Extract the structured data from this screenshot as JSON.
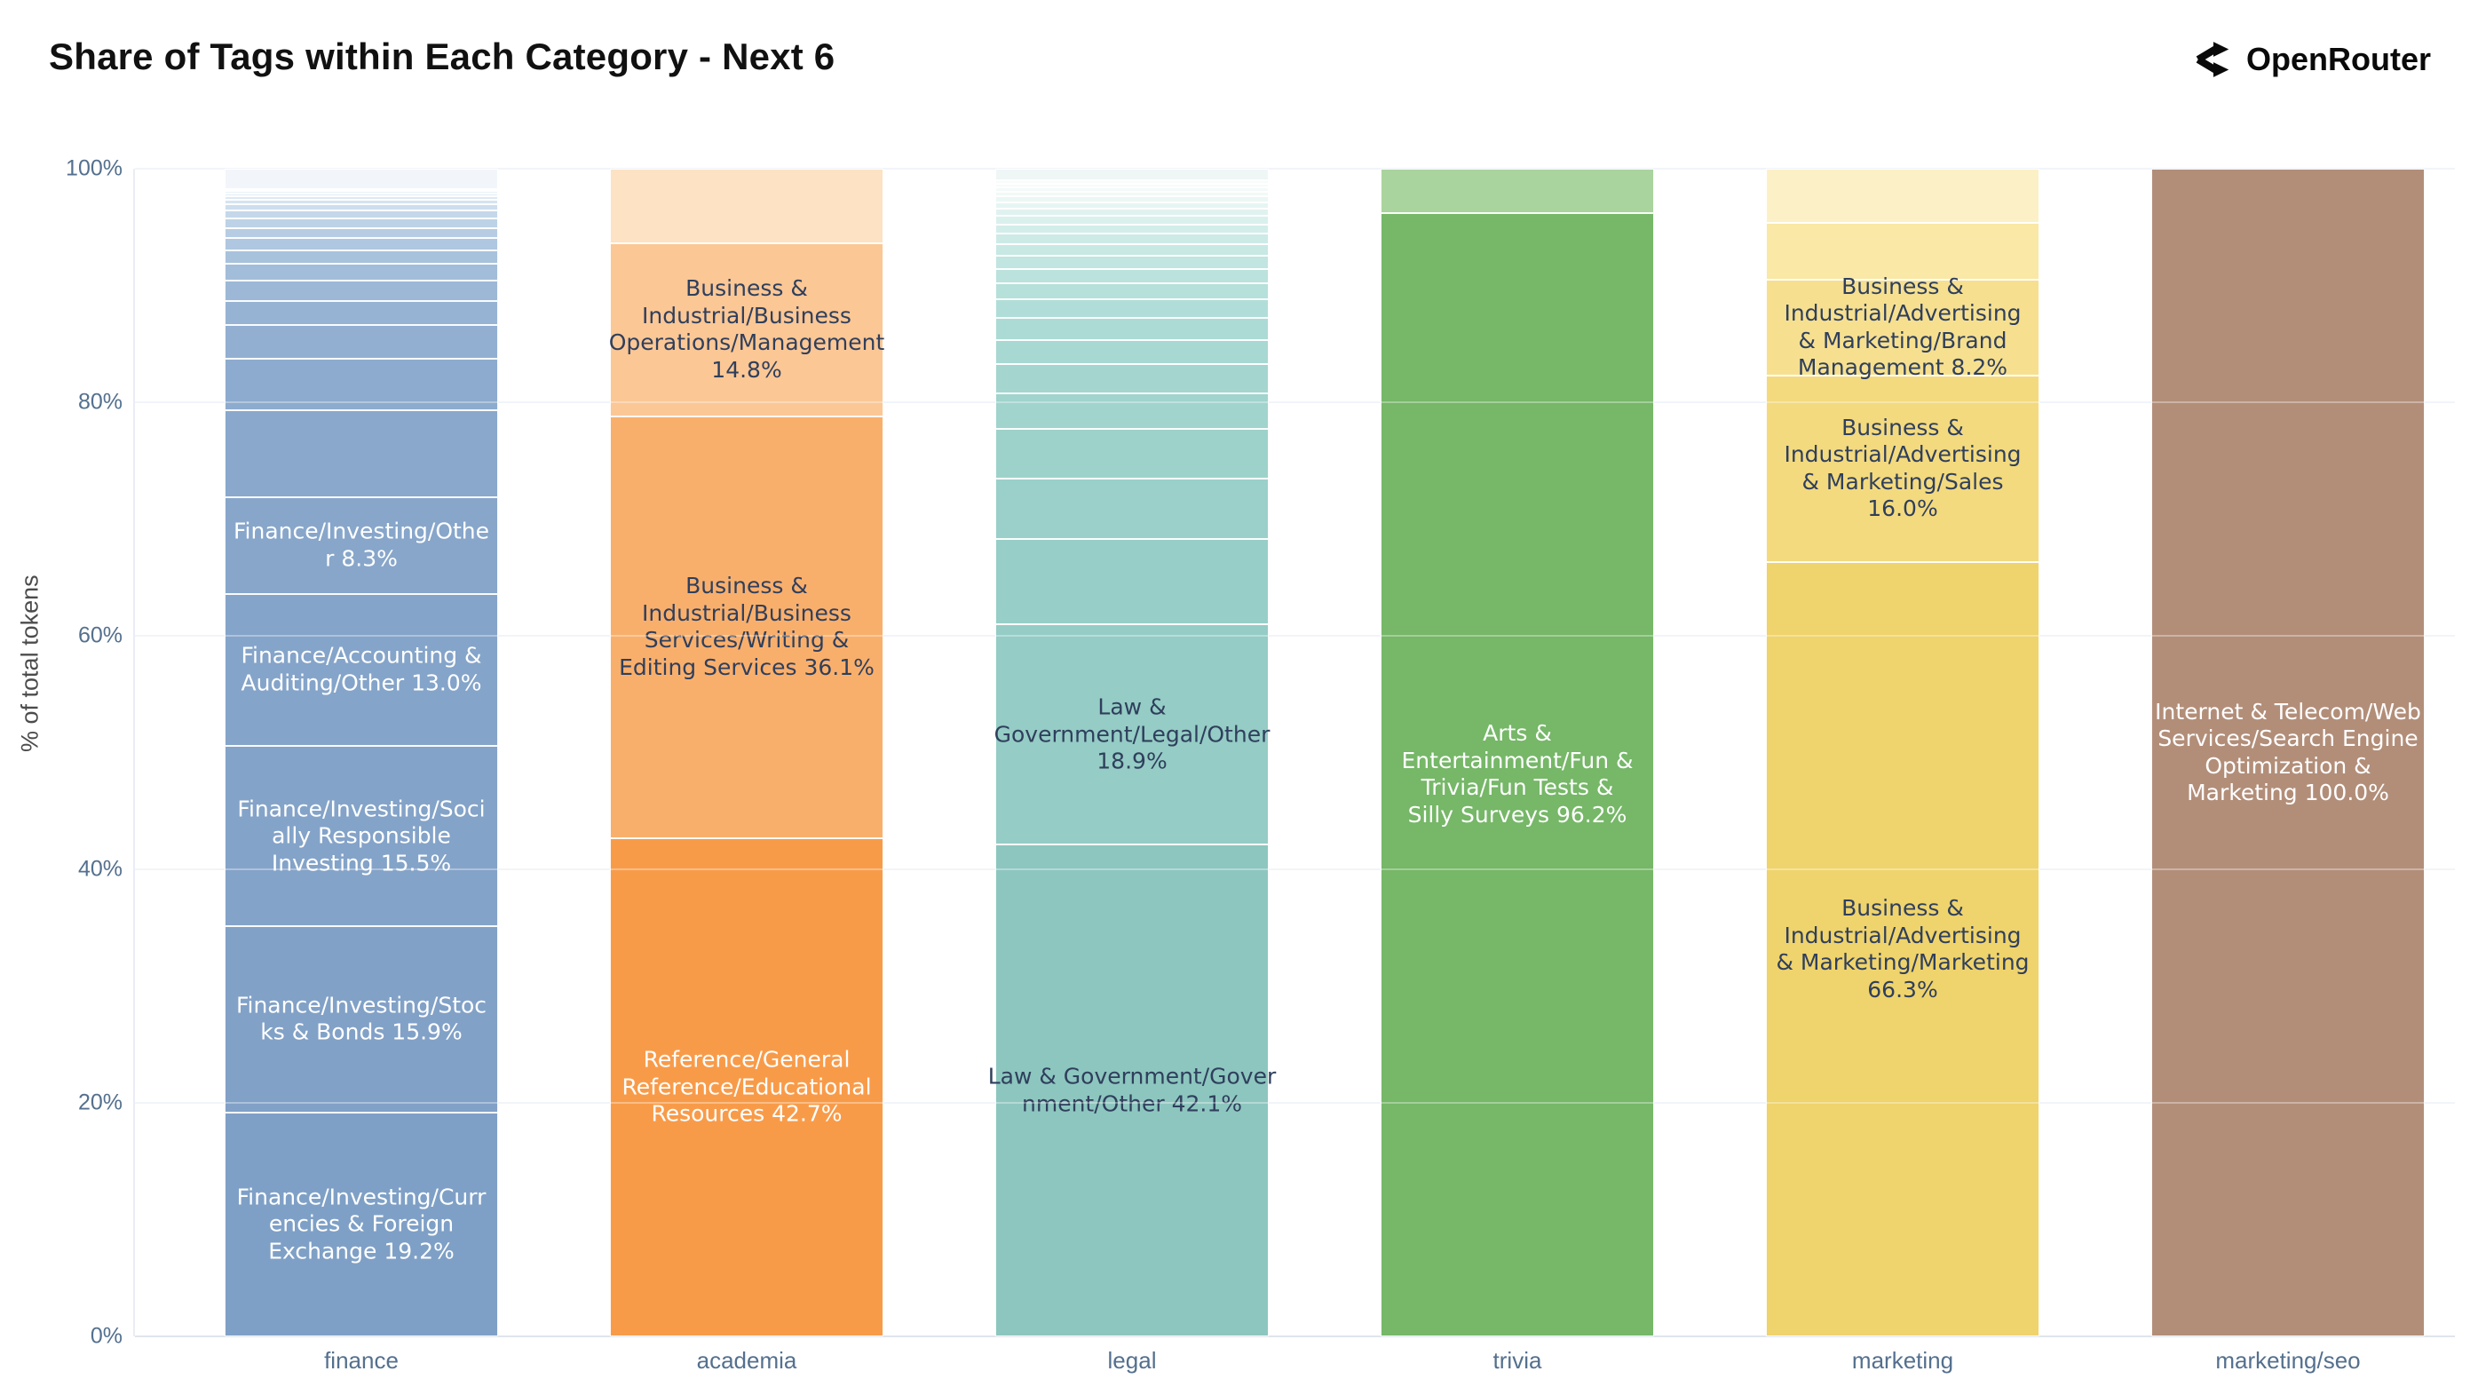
{
  "page": {
    "title": "Share of Tags within Each Category - Next 6",
    "brand": "OpenRouter"
  },
  "colors": {
    "grid": "#eaeff6",
    "axis_text": "#54708e",
    "axis_title_text": "#4c4c4c",
    "title_text": "#111111",
    "label_dark": "#2f3f5c",
    "label_light": "#ffffff"
  },
  "chart_data": {
    "type": "bar",
    "stacked": true,
    "orientation": "vertical",
    "title": "Share of Tags within Each Category - Next 6",
    "xlabel": "",
    "ylabel": "% of total tokens",
    "ylim": [
      0,
      100
    ],
    "grid": true,
    "legend": false,
    "yticks": [
      {
        "label": "0%",
        "pct": 0
      },
      {
        "label": "20%",
        "pct": 20
      },
      {
        "label": "40%",
        "pct": 40
      },
      {
        "label": "60%",
        "pct": 60
      },
      {
        "label": "80%",
        "pct": 80
      },
      {
        "label": "100%",
        "pct": 100
      }
    ],
    "categories": [
      "finance",
      "academia",
      "legal",
      "trivia",
      "marketing",
      "marketing/seo"
    ],
    "bars": [
      {
        "category": "finance",
        "segments": [
          {
            "value": 19.2,
            "color": "#7fa0c6",
            "text": "#ffffff",
            "label_lines": [
              "Finance/Investing/Curr",
              "encies & Foreign",
              "Exchange 19.2%"
            ]
          },
          {
            "value": 15.9,
            "color": "#82a1c7",
            "text": "#ffffff",
            "label_lines": [
              "Finance/Investing/Stoc",
              "ks & Bonds 15.9%"
            ]
          },
          {
            "value": 15.5,
            "color": "#84a3c8",
            "text": "#ffffff",
            "label_lines": [
              "Finance/Investing/Soci",
              "ally Responsible",
              "Investing 15.5%"
            ]
          },
          {
            "value": 13.0,
            "color": "#85a4c9",
            "text": "#ffffff",
            "label_lines": [
              "Finance/Accounting &",
              "Auditing/Other 13.0%"
            ]
          },
          {
            "value": 8.3,
            "color": "#87a6ca",
            "text": "#ffffff",
            "label_lines": [
              "Finance/Investing/Othe",
              "r 8.3%"
            ]
          },
          {
            "value": 7.4,
            "color": "#89a8cc",
            "text": "",
            "label_lines": []
          },
          {
            "value": 4.4,
            "color": "#8dabce",
            "text": "",
            "label_lines": []
          },
          {
            "value": 2.9,
            "color": "#92afd1",
            "text": "",
            "label_lines": []
          },
          {
            "value": 2.1,
            "color": "#97b3d3",
            "text": "",
            "label_lines": []
          },
          {
            "value": 1.7,
            "color": "#9cb8d6",
            "text": "",
            "label_lines": []
          },
          {
            "value": 1.45,
            "color": "#a2bdd9",
            "text": "",
            "label_lines": []
          },
          {
            "value": 1.2,
            "color": "#a8c2dc",
            "text": "",
            "label_lines": []
          },
          {
            "value": 1.0,
            "color": "#afc7e0",
            "text": "",
            "label_lines": []
          },
          {
            "value": 0.9,
            "color": "#b6cce3",
            "text": "",
            "label_lines": []
          },
          {
            "value": 0.8,
            "color": "#bdd2e6",
            "text": "",
            "label_lines": []
          },
          {
            "value": 0.7,
            "color": "#c5d8ea",
            "text": "",
            "label_lines": []
          },
          {
            "value": 0.5,
            "color": "#cddeee",
            "text": "",
            "label_lines": []
          },
          {
            "value": 0.4,
            "color": "#d5e4f1",
            "text": "",
            "label_lines": []
          },
          {
            "value": 0.3,
            "color": "#dde9f4",
            "text": "",
            "label_lines": []
          },
          {
            "value": 0.25,
            "color": "#e4eef7",
            "text": "",
            "label_lines": []
          },
          {
            "value": 0.2,
            "color": "#ebf3f9",
            "text": "",
            "label_lines": []
          },
          {
            "value": 0.2,
            "color": "#f1f6fb",
            "text": "",
            "label_lines": []
          },
          {
            "value": 1.7,
            "color": "#f2f6fa",
            "text": "",
            "label_lines": []
          }
        ]
      },
      {
        "category": "academia",
        "segments": [
          {
            "value": 42.7,
            "color": "#f89b49",
            "text": "#ffffff",
            "label_lines": [
              "Reference/General",
              "Reference/Educational",
              "Resources 42.7%"
            ]
          },
          {
            "value": 36.1,
            "color": "#f9af6c",
            "text": "#2f3f5c",
            "label_lines": [
              "Business &",
              "Industrial/Business",
              "Services/Writing &",
              "Editing Services 36.1%"
            ]
          },
          {
            "value": 14.8,
            "color": "#fbc795",
            "text": "#2f3f5c",
            "label_lines": [
              "Business &",
              "Industrial/Business",
              "Operations/Management",
              "14.8%"
            ]
          },
          {
            "value": 6.4,
            "color": "#fde2c3",
            "text": "",
            "label_lines": []
          }
        ]
      },
      {
        "category": "legal",
        "segments": [
          {
            "value": 42.1,
            "color": "#8dc6bf",
            "text": "#2f3f5c",
            "label_lines": [
              "Law & Government/Gover",
              "nment/Other 42.1%"
            ]
          },
          {
            "value": 18.9,
            "color": "#95ccc5",
            "text": "#2f3f5c",
            "label_lines": [
              "Law &",
              "Government/Legal/Other",
              "18.9%"
            ]
          },
          {
            "value": 7.3,
            "color": "#97cec7",
            "text": "",
            "label_lines": []
          },
          {
            "value": 5.2,
            "color": "#9ad0c9",
            "text": "",
            "label_lines": []
          },
          {
            "value": 4.25,
            "color": "#9dd2cb",
            "text": "",
            "label_lines": []
          },
          {
            "value": 3.0,
            "color": "#a0d4cd",
            "text": "",
            "label_lines": []
          },
          {
            "value": 2.5,
            "color": "#a4d6cf",
            "text": "",
            "label_lines": []
          },
          {
            "value": 2.1,
            "color": "#a8d8d2",
            "text": "",
            "label_lines": []
          },
          {
            "value": 1.85,
            "color": "#acdbd5",
            "text": "",
            "label_lines": []
          },
          {
            "value": 1.6,
            "color": "#b1ddd8",
            "text": "",
            "label_lines": []
          },
          {
            "value": 1.4,
            "color": "#b6e0da",
            "text": "",
            "label_lines": []
          },
          {
            "value": 1.25,
            "color": "#bbe2dd",
            "text": "",
            "label_lines": []
          },
          {
            "value": 1.1,
            "color": "#c1e5e0",
            "text": "",
            "label_lines": []
          },
          {
            "value": 1.0,
            "color": "#c7e8e3",
            "text": "",
            "label_lines": []
          },
          {
            "value": 0.9,
            "color": "#cdeae7",
            "text": "",
            "label_lines": []
          },
          {
            "value": 0.8,
            "color": "#d3edea",
            "text": "",
            "label_lines": []
          },
          {
            "value": 0.7,
            "color": "#daf0ed",
            "text": "",
            "label_lines": []
          },
          {
            "value": 0.65,
            "color": "#e0f2f0",
            "text": "",
            "label_lines": []
          },
          {
            "value": 0.55,
            "color": "#e6f5f3",
            "text": "",
            "label_lines": []
          },
          {
            "value": 0.5,
            "color": "#ebf7f5",
            "text": "",
            "label_lines": []
          },
          {
            "value": 0.4,
            "color": "#f0f9f7",
            "text": "",
            "label_lines": []
          },
          {
            "value": 0.35,
            "color": "#f3faf9",
            "text": "",
            "label_lines": []
          },
          {
            "value": 0.3,
            "color": "#f6fbfa",
            "text": "",
            "label_lines": []
          },
          {
            "value": 0.3,
            "color": "#f8fcfb",
            "text": "",
            "label_lines": []
          },
          {
            "value": 1.0,
            "color": "#eff7f6",
            "text": "",
            "label_lines": []
          }
        ]
      },
      {
        "category": "trivia",
        "segments": [
          {
            "value": 96.2,
            "color": "#76b768",
            "text": "#ffffff",
            "label_lines": [
              "Arts &",
              "Entertainment/Fun &",
              "Trivia/Fun Tests &",
              "Silly Surveys 96.2%"
            ]
          },
          {
            "value": 3.8,
            "color": "#a9d49d",
            "text": "",
            "label_lines": []
          }
        ]
      },
      {
        "category": "marketing",
        "segments": [
          {
            "value": 66.3,
            "color": "#efd36c",
            "text": "#2f3f5c",
            "label_lines": [
              "Business &",
              "Industrial/Advertising",
              "& Marketing/Marketing",
              "66.3%"
            ]
          },
          {
            "value": 16.0,
            "color": "#f3da7f",
            "text": "#2f3f5c",
            "label_lines": [
              "Business &",
              "Industrial/Advertising",
              "& Marketing/Sales",
              "16.0%"
            ]
          },
          {
            "value": 8.2,
            "color": "#f6e090",
            "text": "#2f3f5c",
            "label_lines": [
              "Business &",
              "Industrial/Advertising",
              "& Marketing/Brand",
              "Management 8.2%"
            ]
          },
          {
            "value": 4.9,
            "color": "#f9e8a6",
            "text": "",
            "label_lines": []
          },
          {
            "value": 4.6,
            "color": "#fcf1c6",
            "text": "",
            "label_lines": []
          }
        ]
      },
      {
        "category": "marketing/seo",
        "segments": [
          {
            "value": 100.0,
            "color": "#b28e79",
            "text": "#ffffff",
            "label_lines": [
              "Internet & Telecom/Web",
              "Services/Search Engine",
              "Optimization &",
              "Marketing 100.0%"
            ]
          }
        ]
      }
    ]
  }
}
